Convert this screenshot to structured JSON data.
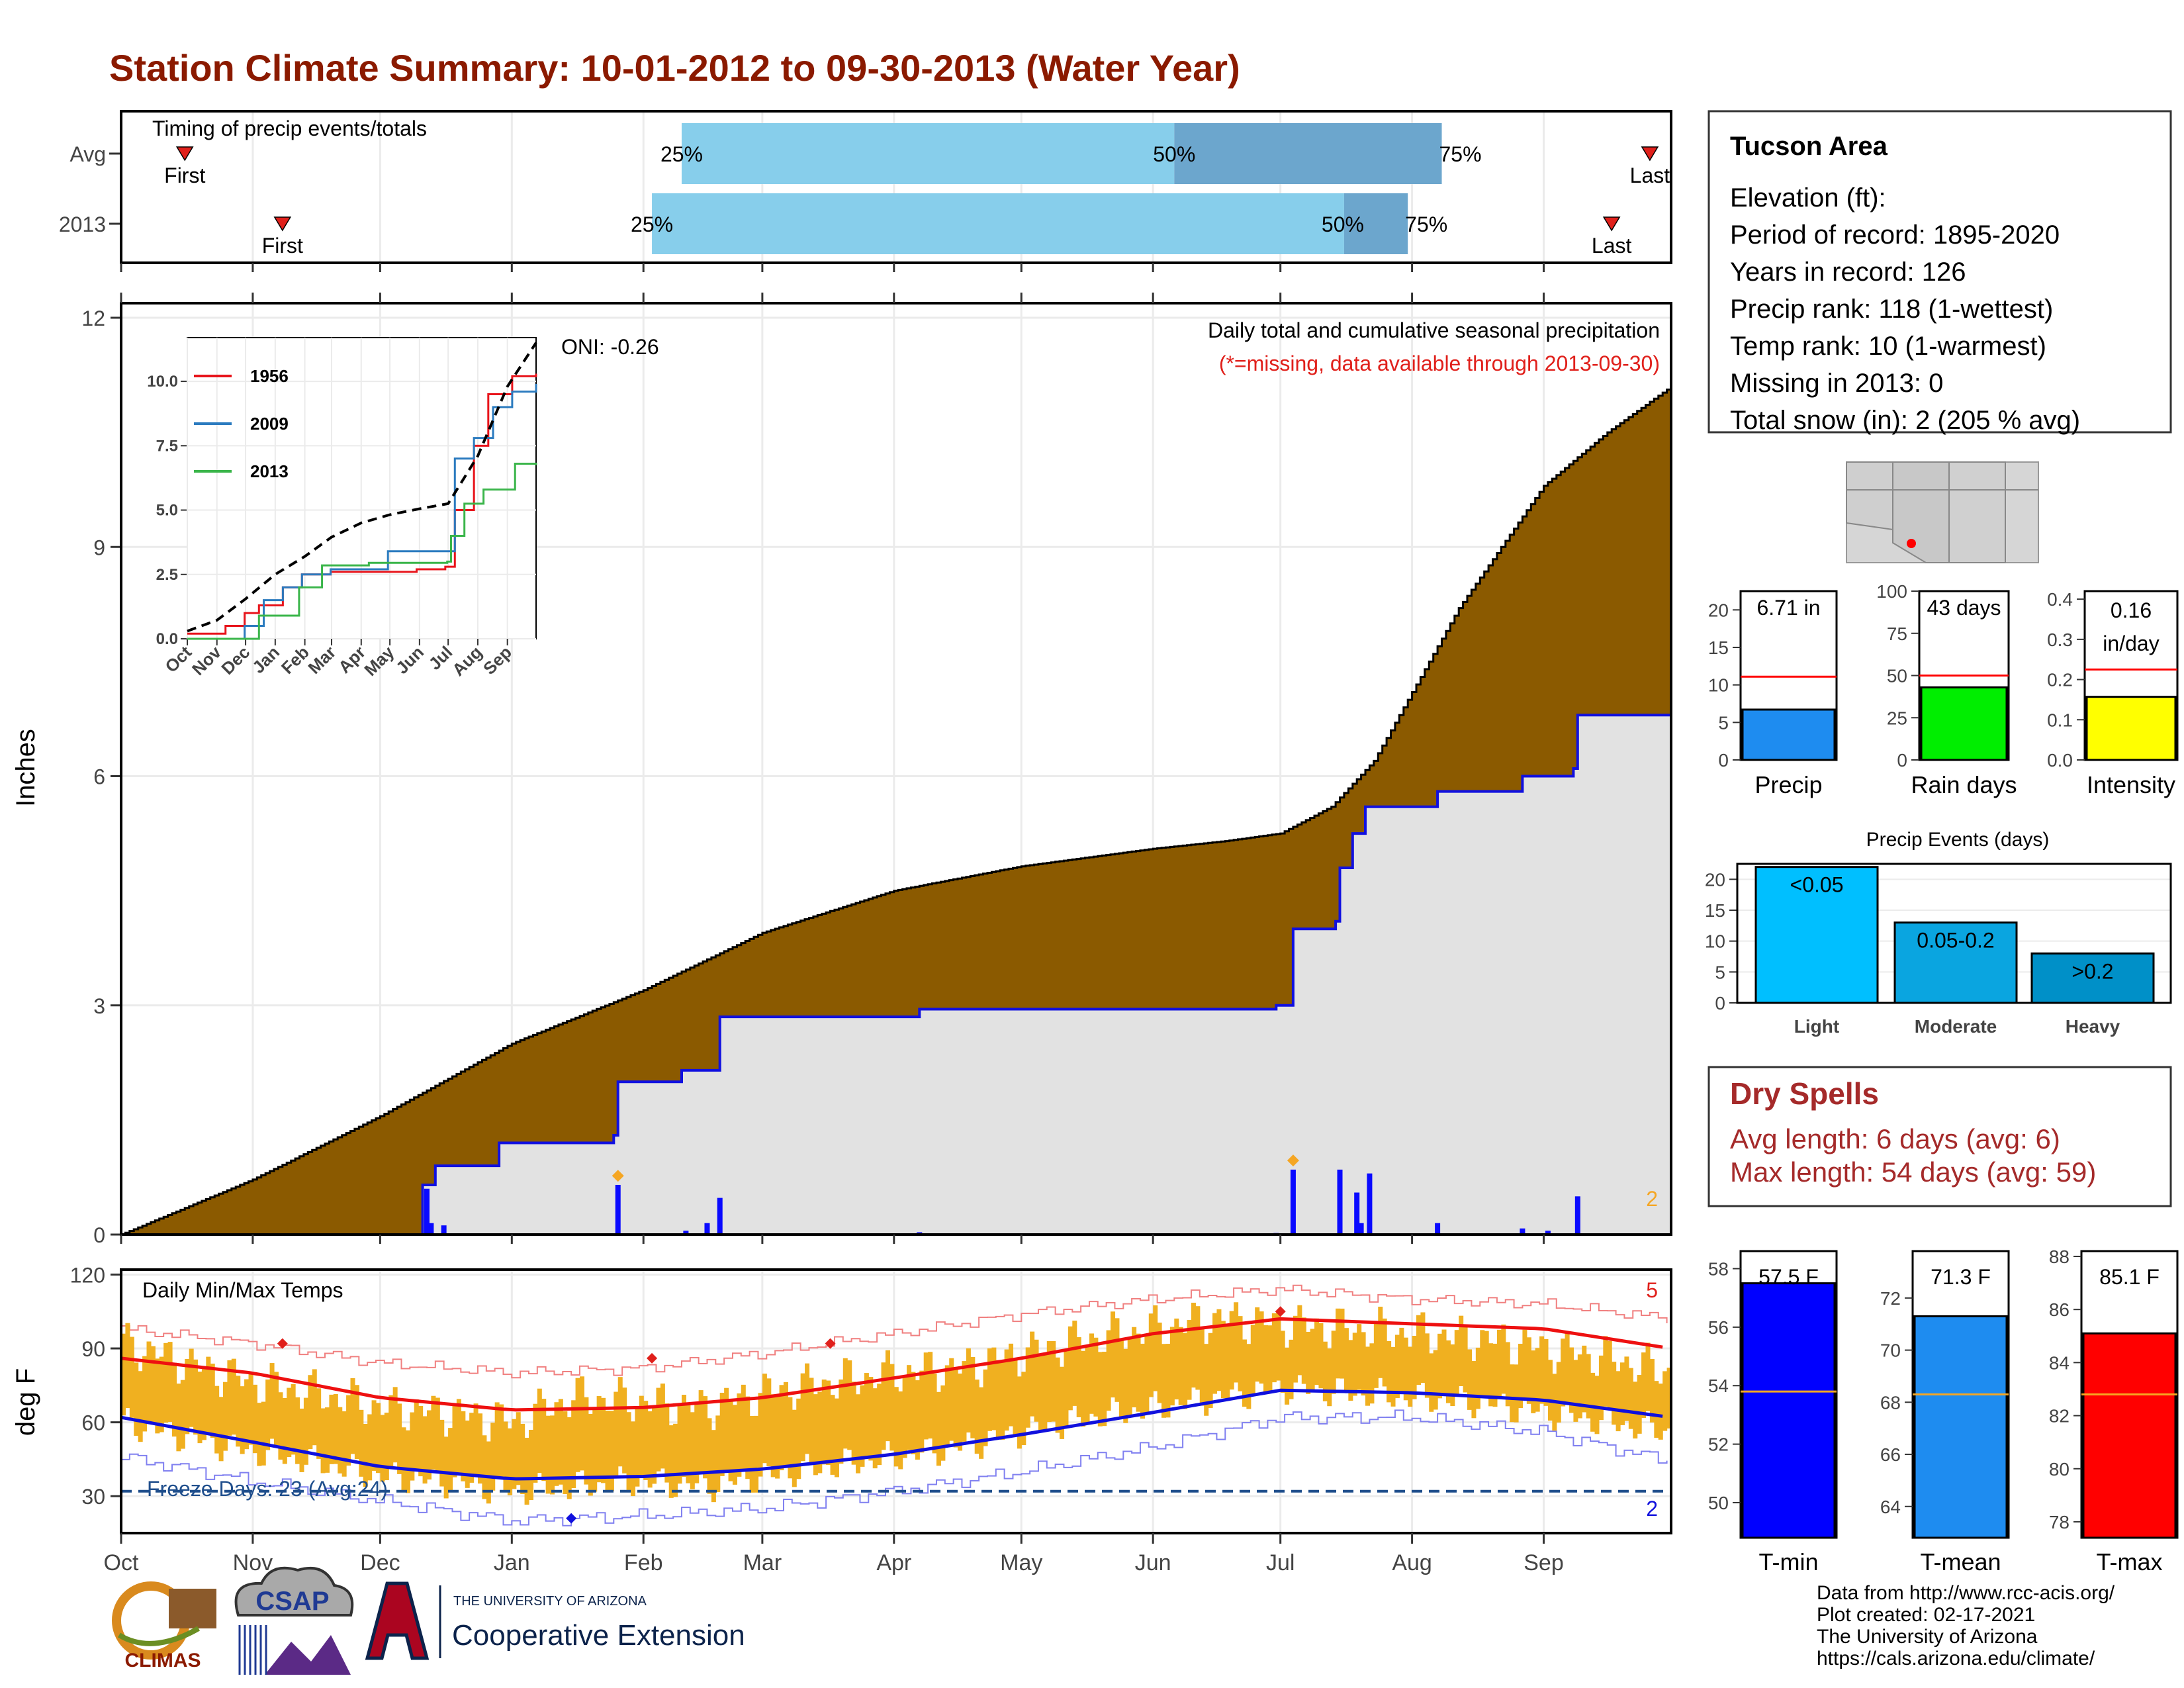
{
  "title": "Station Climate Summary: 10-01-2012 to 09-30-2013 (Water Year)",
  "timing": {
    "heading": "Timing of precip events/totals",
    "rows": [
      {
        "label": "Avg",
        "first_day": 15,
        "p25_day": 132,
        "p50_day": 248,
        "p75_day": 311,
        "last_day": 360,
        "labels": [
          "First",
          "25%",
          "50%",
          "75%",
          "Last"
        ]
      },
      {
        "label": "2013",
        "first_day": 38,
        "p25_day": 125,
        "p50_day": 288,
        "p75_day": 303,
        "last_day": 351,
        "labels": [
          "First",
          "25%",
          "50%",
          "75%",
          "Last"
        ]
      }
    ]
  },
  "months": [
    "Oct",
    "Nov",
    "Dec",
    "Jan",
    "Feb",
    "Mar",
    "Apr",
    "May",
    "Jun",
    "Jul",
    "Aug",
    "Sep"
  ],
  "month_start_days": [
    0,
    31,
    61,
    92,
    123,
    151,
    182,
    212,
    243,
    273,
    304,
    335
  ],
  "precip_panel": {
    "ylabel": "Inches",
    "yticks": [
      0,
      3,
      6,
      9,
      12
    ],
    "ylim": [
      0,
      12
    ],
    "note1": "Daily total and cumulative seasonal precipitation",
    "note2": "(*=missing, data available through 2013-09-30)",
    "oni": "ONI: -0.26",
    "corner_count": "2",
    "avg_cum": [
      [
        0,
        0
      ],
      [
        31,
        0.72
      ],
      [
        61,
        1.55
      ],
      [
        92,
        2.5
      ],
      [
        123,
        3.2
      ],
      [
        151,
        3.95
      ],
      [
        182,
        4.5
      ],
      [
        212,
        4.82
      ],
      [
        243,
        5.05
      ],
      [
        260,
        5.15
      ],
      [
        273,
        5.25
      ],
      [
        285,
        5.6
      ],
      [
        295,
        6.2
      ],
      [
        304,
        7.1
      ],
      [
        315,
        8.2
      ],
      [
        335,
        9.8
      ],
      [
        350,
        10.5
      ],
      [
        365,
        11.1
      ]
    ],
    "obs_cum": [
      [
        0,
        0
      ],
      [
        60,
        0
      ],
      [
        71,
        0.65
      ],
      [
        74,
        0.9
      ],
      [
        89,
        1.2
      ],
      [
        116,
        1.3
      ],
      [
        117,
        2.0
      ],
      [
        132,
        2.15
      ],
      [
        141,
        2.85
      ],
      [
        188,
        2.95
      ],
      [
        272,
        3.0
      ],
      [
        276,
        4.0
      ],
      [
        286,
        4.1
      ],
      [
        287,
        4.8
      ],
      [
        290,
        5.25
      ],
      [
        293,
        5.6
      ],
      [
        310,
        5.8
      ],
      [
        330,
        6.0
      ],
      [
        342,
        6.1
      ],
      [
        343,
        6.8
      ],
      [
        365,
        6.75
      ]
    ],
    "daily_bars": [
      [
        72,
        0.6
      ],
      [
        73,
        0.15
      ],
      [
        76,
        0.12
      ],
      [
        117,
        0.65
      ],
      [
        133,
        0.05
      ],
      [
        138,
        0.15
      ],
      [
        141,
        0.48
      ],
      [
        188,
        0.03
      ],
      [
        272,
        0.02
      ],
      [
        276,
        0.85
      ],
      [
        287,
        0.85
      ],
      [
        291,
        0.55
      ],
      [
        292,
        0.15
      ],
      [
        294,
        0.8
      ],
      [
        310,
        0.15
      ],
      [
        330,
        0.08
      ],
      [
        336,
        0.05
      ],
      [
        343,
        0.5
      ]
    ],
    "markers": [
      {
        "day": 117,
        "value": 0.7
      },
      {
        "day": 276,
        "value": 0.9
      }
    ]
  },
  "inset": {
    "yticks": [
      "10.0",
      "7.5",
      "5.0",
      "2.5",
      "0.0"
    ],
    "ytick_values": [
      10,
      7.5,
      5,
      2.5,
      0
    ],
    "xticks": [
      "Oct",
      "Nov",
      "Dec",
      "Jan",
      "Feb",
      "Mar",
      "Apr",
      "May",
      "Jun",
      "Jul",
      "Aug",
      "Sep"
    ],
    "series": [
      {
        "name": "1956",
        "color": "#E8141B",
        "points": [
          [
            0,
            0.2
          ],
          [
            40,
            0.5
          ],
          [
            60,
            1.0
          ],
          [
            75,
            1.3
          ],
          [
            100,
            2.0
          ],
          [
            120,
            2.5
          ],
          [
            150,
            2.6
          ],
          [
            180,
            2.6
          ],
          [
            210,
            2.6
          ],
          [
            240,
            2.7
          ],
          [
            270,
            2.8
          ],
          [
            280,
            5.0
          ],
          [
            300,
            7.5
          ],
          [
            315,
            9.5
          ],
          [
            340,
            10.2
          ],
          [
            365,
            10.3
          ]
        ]
      },
      {
        "name": "2009",
        "color": "#2B7BBF",
        "points": [
          [
            0,
            0.0
          ],
          [
            40,
            0.0
          ],
          [
            60,
            0.5
          ],
          [
            80,
            1.5
          ],
          [
            100,
            2.0
          ],
          [
            120,
            2.5
          ],
          [
            150,
            2.7
          ],
          [
            180,
            2.7
          ],
          [
            210,
            3.4
          ],
          [
            240,
            3.4
          ],
          [
            265,
            3.4
          ],
          [
            280,
            7.0
          ],
          [
            300,
            7.8
          ],
          [
            320,
            9.0
          ],
          [
            340,
            9.6
          ],
          [
            365,
            9.9
          ]
        ]
      },
      {
        "name": "2013",
        "color": "#3AB54A",
        "points": [
          [
            0,
            0.0
          ],
          [
            60,
            0.0
          ],
          [
            75,
            0.9
          ],
          [
            117,
            2.0
          ],
          [
            141,
            2.85
          ],
          [
            190,
            2.95
          ],
          [
            272,
            3.0
          ],
          [
            276,
            4.0
          ],
          [
            290,
            5.25
          ],
          [
            310,
            5.8
          ],
          [
            343,
            6.8
          ],
          [
            365,
            6.75
          ]
        ]
      },
      {
        "name": "",
        "color": "#000000",
        "dashed": true,
        "points": [
          [
            0,
            0.3
          ],
          [
            31,
            0.72
          ],
          [
            61,
            1.55
          ],
          [
            92,
            2.5
          ],
          [
            123,
            3.2
          ],
          [
            151,
            3.95
          ],
          [
            182,
            4.5
          ],
          [
            212,
            4.82
          ],
          [
            243,
            5.05
          ],
          [
            273,
            5.25
          ],
          [
            304,
            7.1
          ],
          [
            335,
            9.8
          ],
          [
            365,
            11.5
          ]
        ]
      }
    ]
  },
  "temp_panel": {
    "ylabel": "deg F",
    "yticks": [
      30,
      60,
      90,
      120
    ],
    "ylim": [
      15,
      122
    ],
    "heading": "Daily Min/Max Temps",
    "freeze_label": "Freeze Days: 23 (Avg:24)",
    "freeze_line": 32,
    "count_hot": "5",
    "count_cold": "2",
    "avg_max": [
      [
        0,
        86
      ],
      [
        31,
        80
      ],
      [
        61,
        70
      ],
      [
        92,
        65
      ],
      [
        123,
        66
      ],
      [
        151,
        70
      ],
      [
        182,
        78
      ],
      [
        212,
        86
      ],
      [
        243,
        96
      ],
      [
        273,
        102
      ],
      [
        304,
        100
      ],
      [
        335,
        98
      ],
      [
        365,
        90
      ]
    ],
    "avg_min": [
      [
        0,
        62
      ],
      [
        31,
        52
      ],
      [
        61,
        42
      ],
      [
        92,
        37
      ],
      [
        123,
        38
      ],
      [
        151,
        41
      ],
      [
        182,
        47
      ],
      [
        212,
        55
      ],
      [
        243,
        64
      ],
      [
        273,
        73
      ],
      [
        304,
        72
      ],
      [
        335,
        69
      ],
      [
        365,
        62
      ]
    ],
    "rec_max": [
      [
        0,
        98
      ],
      [
        31,
        92
      ],
      [
        61,
        84
      ],
      [
        92,
        80
      ],
      [
        123,
        82
      ],
      [
        151,
        88
      ],
      [
        182,
        96
      ],
      [
        212,
        104
      ],
      [
        243,
        110
      ],
      [
        273,
        114
      ],
      [
        304,
        110
      ],
      [
        335,
        108
      ],
      [
        365,
        102
      ]
    ],
    "rec_min": [
      [
        0,
        46
      ],
      [
        31,
        36
      ],
      [
        61,
        28
      ],
      [
        92,
        20
      ],
      [
        123,
        22
      ],
      [
        151,
        25
      ],
      [
        182,
        32
      ],
      [
        212,
        40
      ],
      [
        243,
        50
      ],
      [
        273,
        62
      ],
      [
        304,
        62
      ],
      [
        335,
        56
      ],
      [
        365,
        44
      ]
    ],
    "obs_max": [
      [
        0,
        92
      ],
      [
        15,
        84
      ],
      [
        31,
        76
      ],
      [
        45,
        72
      ],
      [
        61,
        66
      ],
      [
        76,
        64
      ],
      [
        92,
        60
      ],
      [
        106,
        70
      ],
      [
        123,
        68
      ],
      [
        137,
        66
      ],
      [
        151,
        72
      ],
      [
        166,
        76
      ],
      [
        182,
        80
      ],
      [
        197,
        82
      ],
      [
        212,
        88
      ],
      [
        228,
        94
      ],
      [
        243,
        98
      ],
      [
        258,
        102
      ],
      [
        273,
        100
      ],
      [
        288,
        98
      ],
      [
        304,
        96
      ],
      [
        320,
        94
      ],
      [
        335,
        90
      ],
      [
        350,
        86
      ],
      [
        365,
        80
      ]
    ],
    "obs_min": [
      [
        0,
        60
      ],
      [
        15,
        54
      ],
      [
        31,
        48
      ],
      [
        45,
        44
      ],
      [
        61,
        38
      ],
      [
        76,
        36
      ],
      [
        92,
        32
      ],
      [
        106,
        34
      ],
      [
        123,
        36
      ],
      [
        137,
        34
      ],
      [
        151,
        38
      ],
      [
        166,
        42
      ],
      [
        182,
        46
      ],
      [
        197,
        50
      ],
      [
        212,
        56
      ],
      [
        228,
        62
      ],
      [
        243,
        66
      ],
      [
        258,
        70
      ],
      [
        273,
        74
      ],
      [
        288,
        72
      ],
      [
        304,
        70
      ],
      [
        320,
        68
      ],
      [
        335,
        64
      ],
      [
        350,
        60
      ],
      [
        365,
        56
      ]
    ]
  },
  "station": {
    "name": "Tucson Area",
    "lines": [
      "Elevation (ft):",
      "Period of record: 1895-2020",
      "Years in record: 126",
      "Precip rank: 118 (1-wettest)",
      "Temp rank: 10 (1-warmest)",
      "Missing in 2013: 0",
      "Total snow (in): 2 (205 % avg)"
    ]
  },
  "mini_bars": [
    {
      "label": "Precip",
      "value_label": "6.71 in",
      "value": 6.71,
      "avg": 11.1,
      "yticks": [
        "20",
        "15",
        "10",
        "5",
        "0"
      ],
      "ymax": 22.5,
      "color": "#1E8CF0"
    },
    {
      "label": "Rain days",
      "value_label": "43 days",
      "value": 43,
      "avg": 50,
      "yticks": [
        "100",
        "75",
        "50",
        "25",
        "0"
      ],
      "ymax": 100,
      "color": "#00EE00"
    },
    {
      "label": "Intensity",
      "value_label_1": "0.16",
      "value_label_2": "in/day",
      "value": 0.157,
      "avg": 0.225,
      "yticks": [
        "0.4",
        "0.3",
        "0.2",
        "0.1",
        "0.0"
      ],
      "ymax": 0.42,
      "color": "#FFFF00"
    }
  ],
  "events": {
    "title": "Precip Events (days)",
    "yticks": [
      "20",
      "15",
      "10",
      "5",
      "0"
    ],
    "ymax": 22.5,
    "bars": [
      {
        "label": "Light",
        "range": "<0.05",
        "value": 22,
        "color": "#00BFFF"
      },
      {
        "label": "Moderate",
        "range": "0.05-0.2",
        "value": 13,
        "color": "#0AA5E0"
      },
      {
        "label": "Heavy",
        "range": ">0.2",
        "value": 8,
        "color": "#0090C8"
      }
    ]
  },
  "dry_spells": {
    "title": "Dry Spells",
    "avg_line": "Avg length: 6 days (avg: 6)",
    "max_line": "Max length: 54 days (avg: 59)"
  },
  "temp_bars": [
    {
      "label": "T-min",
      "value_label": "57.5 F",
      "value": 57.5,
      "avg": 53.8,
      "yticks": [
        "58",
        "56",
        "54",
        "52",
        "50"
      ],
      "ytick_values": [
        58,
        56,
        54,
        52,
        50
      ],
      "ymin": 48.8,
      "ymax": 58.6,
      "color": "#0000FF"
    },
    {
      "label": "T-mean",
      "value_label": "71.3 F",
      "value": 71.3,
      "avg": 68.3,
      "yticks": [
        "72",
        "70",
        "68",
        "66",
        "64"
      ],
      "ytick_values": [
        72,
        70,
        68,
        66,
        64
      ],
      "ymin": 62.8,
      "ymax": 73.8,
      "color": "#1E8CF0"
    },
    {
      "label": "T-max",
      "value_label": "85.1 F",
      "value": 85.1,
      "avg": 82.8,
      "yticks": [
        "88",
        "86",
        "84",
        "82",
        "80",
        "78"
      ],
      "ytick_values": [
        88,
        86,
        84,
        82,
        80,
        78
      ],
      "ymin": 77.4,
      "ymax": 88.2,
      "color": "#FF0000"
    }
  ],
  "credits": [
    "Data from http://www.rcc-acis.org/",
    "Plot created: 02-17-2021",
    "The University of Arizona",
    "https://cals.arizona.edu/climate/"
  ],
  "logos": {
    "climas": "CLIMAS",
    "csap": "CSAP",
    "ua_small": "THE UNIVERSITY OF ARIZONA",
    "ua_big": "Cooperative Extension"
  }
}
